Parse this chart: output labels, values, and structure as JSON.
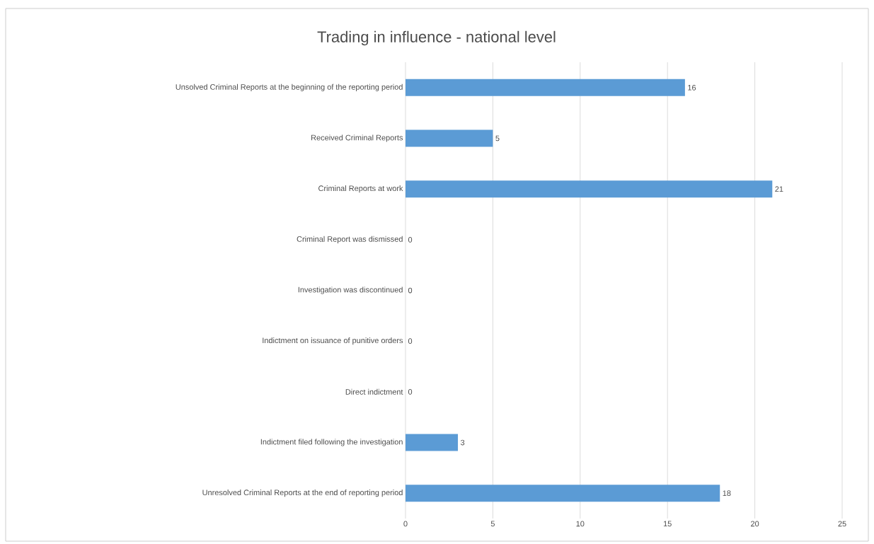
{
  "chart_data": {
    "type": "bar",
    "orientation": "horizontal",
    "title": "Trading in influence - national level",
    "categories": [
      "Unsolved Criminal Reports at the beginning of the reporting period",
      "Received  Criminal Reports",
      "Criminal Reports at work",
      "Criminal Report was  dismissed",
      "Investigation was discontinued",
      "Indictment on issuance of punitive orders",
      "Direct indictment",
      "Indictment filed following the investigation",
      "Unresolved Criminal Reports at the end of reporting period"
    ],
    "values": [
      16,
      5,
      21,
      0,
      0,
      0,
      0,
      3,
      18
    ],
    "color": "#5b9bd5",
    "xlim": [
      0,
      25
    ],
    "xticks": [
      0,
      5,
      10,
      15,
      20,
      25
    ],
    "grid": "x",
    "data_labels": true
  }
}
